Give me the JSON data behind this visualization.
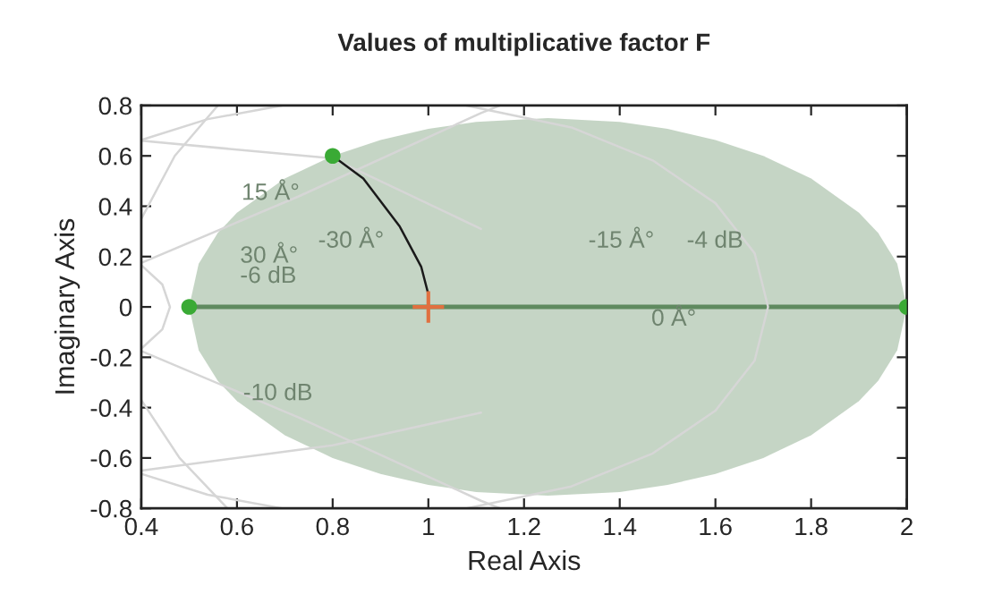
{
  "chart_data": {
    "type": "line",
    "title": "Values of multiplicative factor F",
    "xlabel": "Real Axis",
    "ylabel": "Imaginary Axis",
    "xlim": [
      0.4,
      2
    ],
    "ylim": [
      -0.8,
      0.8
    ],
    "xticks": [
      0.4,
      0.6,
      0.8,
      1,
      1.2,
      1.4,
      1.6,
      1.8,
      2
    ],
    "yticks": [
      -0.8,
      -0.6,
      -0.4,
      -0.2,
      0,
      0.2,
      0.4,
      0.6,
      0.8
    ],
    "grid": false,
    "legend": false,
    "series": [
      {
        "color": "#5f8a5f",
        "x": [
          0.5,
          0.52,
          0.56,
          0.6,
          0.7,
          0.8,
          0.9,
          1.0,
          1.1,
          1.25,
          1.4,
          1.5,
          1.6,
          1.7,
          1.8,
          1.9,
          1.94,
          1.98,
          2.0
        ],
        "values": [
          0,
          0,
          0,
          0,
          0,
          0,
          0,
          0,
          0,
          0,
          0,
          0,
          0,
          0,
          0,
          0,
          0,
          0,
          0
        ],
        "lower": [
          0,
          -0.172,
          -0.294,
          -0.374,
          -0.51,
          -0.6,
          -0.663,
          -0.707,
          -0.735,
          -0.75,
          -0.735,
          -0.707,
          -0.663,
          -0.6,
          -0.51,
          -0.374,
          -0.294,
          -0.172,
          0
        ],
        "upper": [
          0,
          0.172,
          0.294,
          0.374,
          0.51,
          0.6,
          0.663,
          0.707,
          0.735,
          0.75,
          0.735,
          0.707,
          0.663,
          0.6,
          0.51,
          0.374,
          0.294,
          0.172,
          0
        ]
      },
      {
        "type": "line",
        "color": "#d6d6d6",
        "x": [
          1.08,
          1.299,
          1.469,
          1.6,
          1.682,
          1.71,
          1.682,
          1.6,
          1.469,
          1.299,
          1.08
        ],
        "values": [
          0.8,
          0.713,
          0.582,
          0.412,
          0.213,
          0,
          -0.213,
          -0.412,
          -0.582,
          -0.713,
          -0.8
        ]
      },
      {
        "type": "line",
        "color": "#d6d6d6",
        "x": [
          0.694,
          0.539,
          0.4
        ],
        "values": [
          0.8,
          0.746,
          0.663
        ]
      },
      {
        "type": "line",
        "color": "#d6d6d6",
        "x": [
          0.694,
          0.539,
          0.4
        ],
        "values": [
          -0.8,
          -0.746,
          -0.663
        ]
      },
      {
        "type": "line",
        "color": "#d6d6d6",
        "x": [
          0.4,
          0.444,
          0.46,
          0.444,
          0.4
        ],
        "values": [
          0.166,
          0.089,
          0,
          -0.089,
          -0.166
        ]
      },
      {
        "type": "line",
        "color": "#d6d6d6",
        "x": [
          0.56,
          0.47,
          0.4
        ],
        "values": [
          0.8,
          0.6,
          0.35
        ]
      },
      {
        "type": "line",
        "color": "#d6d6d6",
        "x": [
          0.58,
          0.48,
          0.4
        ],
        "values": [
          -0.8,
          -0.6,
          -0.37
        ]
      },
      {
        "type": "line",
        "color": "#d6d6d6",
        "x": [
          0.4,
          0.73,
          1.11,
          1.15
        ],
        "values": [
          0.175,
          0.44,
          0.77,
          0.8
        ]
      },
      {
        "type": "line",
        "color": "#d6d6d6",
        "x": [
          0.4,
          0.73,
          1.11,
          1.15
        ],
        "values": [
          -0.175,
          -0.44,
          -0.77,
          -0.8
        ]
      },
      {
        "type": "line",
        "color": "#d6d6d6",
        "x": [
          0.4,
          0.8,
          1.11
        ],
        "values": [
          0.66,
          0.59,
          0.31
        ]
      },
      {
        "type": "line",
        "color": "#d6d6d6",
        "x": [
          0.4,
          0.8,
          1.11
        ],
        "values": [
          -0.65,
          -0.55,
          -0.42
        ]
      },
      {
        "type": "line",
        "color": "#1a1a1a",
        "x": [
          0.8,
          0.864,
          0.94,
          0.985,
          1.0
        ],
        "values": [
          0.6,
          0.51,
          0.32,
          0.16,
          0.05
        ]
      },
      {
        "type": "scatter",
        "marker": "circle",
        "color": "#3aaa35",
        "x": [
          0.5,
          0.8,
          2.0
        ],
        "values": [
          0,
          0.6,
          0
        ]
      },
      {
        "type": "scatter",
        "marker": "cross",
        "color": "#e07040",
        "x": [
          1.0
        ],
        "values": [
          0
        ]
      }
    ],
    "annotations": [
      "15 Å°",
      "-30 Å°",
      "30 Å°",
      "-6 dB",
      "-15 Å°",
      "-4 dB",
      "0 Å°",
      "-10 dB"
    ]
  }
}
